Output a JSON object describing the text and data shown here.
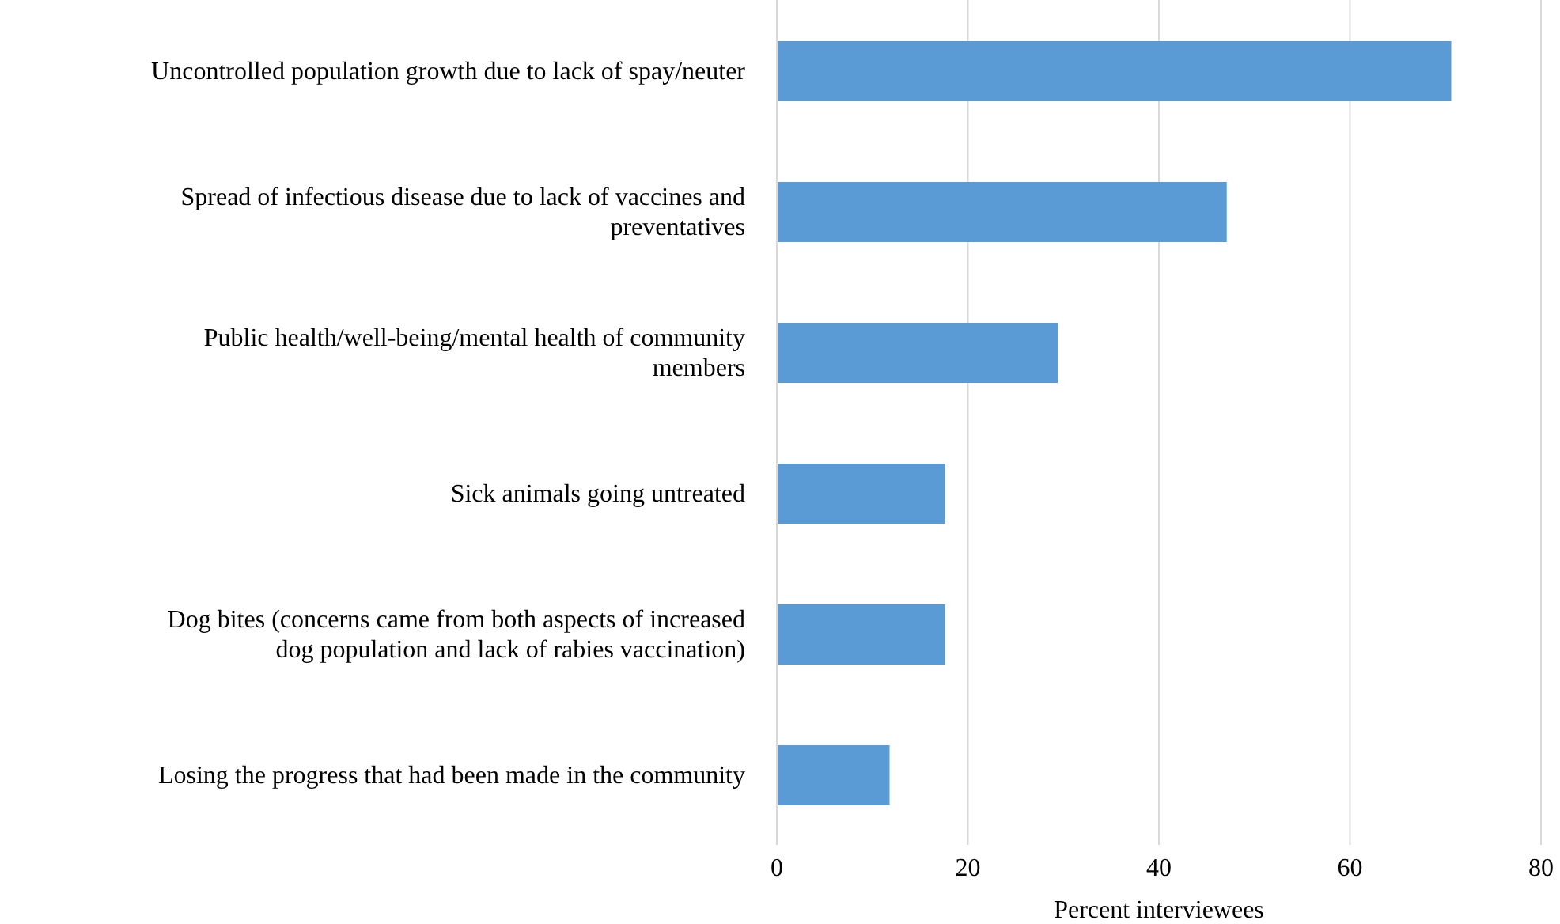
{
  "chart_data": {
    "type": "bar",
    "orientation": "horizontal",
    "xlabel": "Percent interviewees",
    "categories": [
      "Uncontrolled population growth due to lack of spay/neuter",
      "Spread of infectious disease due to lack of vaccines and preventatives",
      "Public health/well-being/mental health of community members",
      "Sick animals going untreated",
      "Dog bites (concerns came from both aspects of increased dog population and lack of rabies vaccination)",
      "Losing the progress that had been made in the community"
    ],
    "values": [
      70.6,
      47.1,
      29.4,
      17.6,
      17.6,
      11.8
    ],
    "color": "#5b9bd5",
    "xlim": [
      0,
      80
    ],
    "xticks": [
      0,
      20,
      40,
      60,
      80
    ],
    "grid": "x"
  }
}
